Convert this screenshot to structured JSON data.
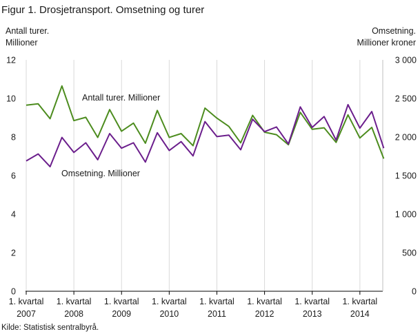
{
  "title": "Figur 1. Drosjetransport. Omsetning og turer",
  "source": "Kilde: Statistisk sentralbyrå.",
  "chart_data": {
    "type": "line",
    "left_axis": {
      "title_lines": [
        "Antall turer.",
        "Millioner"
      ],
      "ylim": [
        0,
        12
      ],
      "ticks": [
        "0",
        "2",
        "4",
        "6",
        "8",
        "10",
        "12"
      ]
    },
    "right_axis": {
      "title_lines": [
        "Omsetning.",
        "Millioner  kroner"
      ],
      "ylim": [
        0,
        3000
      ],
      "ticks": [
        "0",
        "500",
        "1 000",
        "1 500",
        "2 000",
        "2 500",
        "3 000"
      ]
    },
    "x_tick_labels": [
      {
        "line1": "1. kvartal",
        "line2": "2007"
      },
      {
        "line1": "1. kvartal",
        "line2": "2008"
      },
      {
        "line1": "1. kvartal",
        "line2": "2009"
      },
      {
        "line1": "1. kvartal",
        "line2": "2010"
      },
      {
        "line1": "1. kvartal",
        "line2": "2011"
      },
      {
        "line1": "1. kvartal",
        "line2": "2012"
      },
      {
        "line1": "1. kvartal",
        "line2": "2013"
      },
      {
        "line1": "1. kvartal",
        "line2": "2014"
      }
    ],
    "grid": "vertical",
    "series": [
      {
        "name": "Antall turer. Millioner",
        "axis": "left",
        "color": "#4c8c1e",
        "values": [
          9.65,
          9.72,
          8.95,
          10.65,
          8.85,
          9.02,
          7.98,
          9.42,
          8.3,
          8.72,
          7.68,
          9.38,
          7.98,
          8.18,
          7.55,
          9.5,
          8.98,
          8.55,
          7.7,
          9.12,
          8.25,
          8.12,
          7.6,
          9.28,
          8.4,
          8.48,
          7.72,
          9.15,
          7.95,
          8.5,
          6.88
        ]
      },
      {
        "name": "Omsetning. Millioner",
        "axis": "right",
        "color": "#6b1e8c",
        "values": [
          1690,
          1780,
          1615,
          1995,
          1800,
          1925,
          1705,
          2045,
          1855,
          1925,
          1675,
          2055,
          1825,
          1940,
          1755,
          2200,
          2005,
          2025,
          1835,
          2230,
          2070,
          2130,
          1910,
          2390,
          2125,
          2265,
          1960,
          2420,
          2115,
          2330,
          1855
        ]
      }
    ]
  }
}
